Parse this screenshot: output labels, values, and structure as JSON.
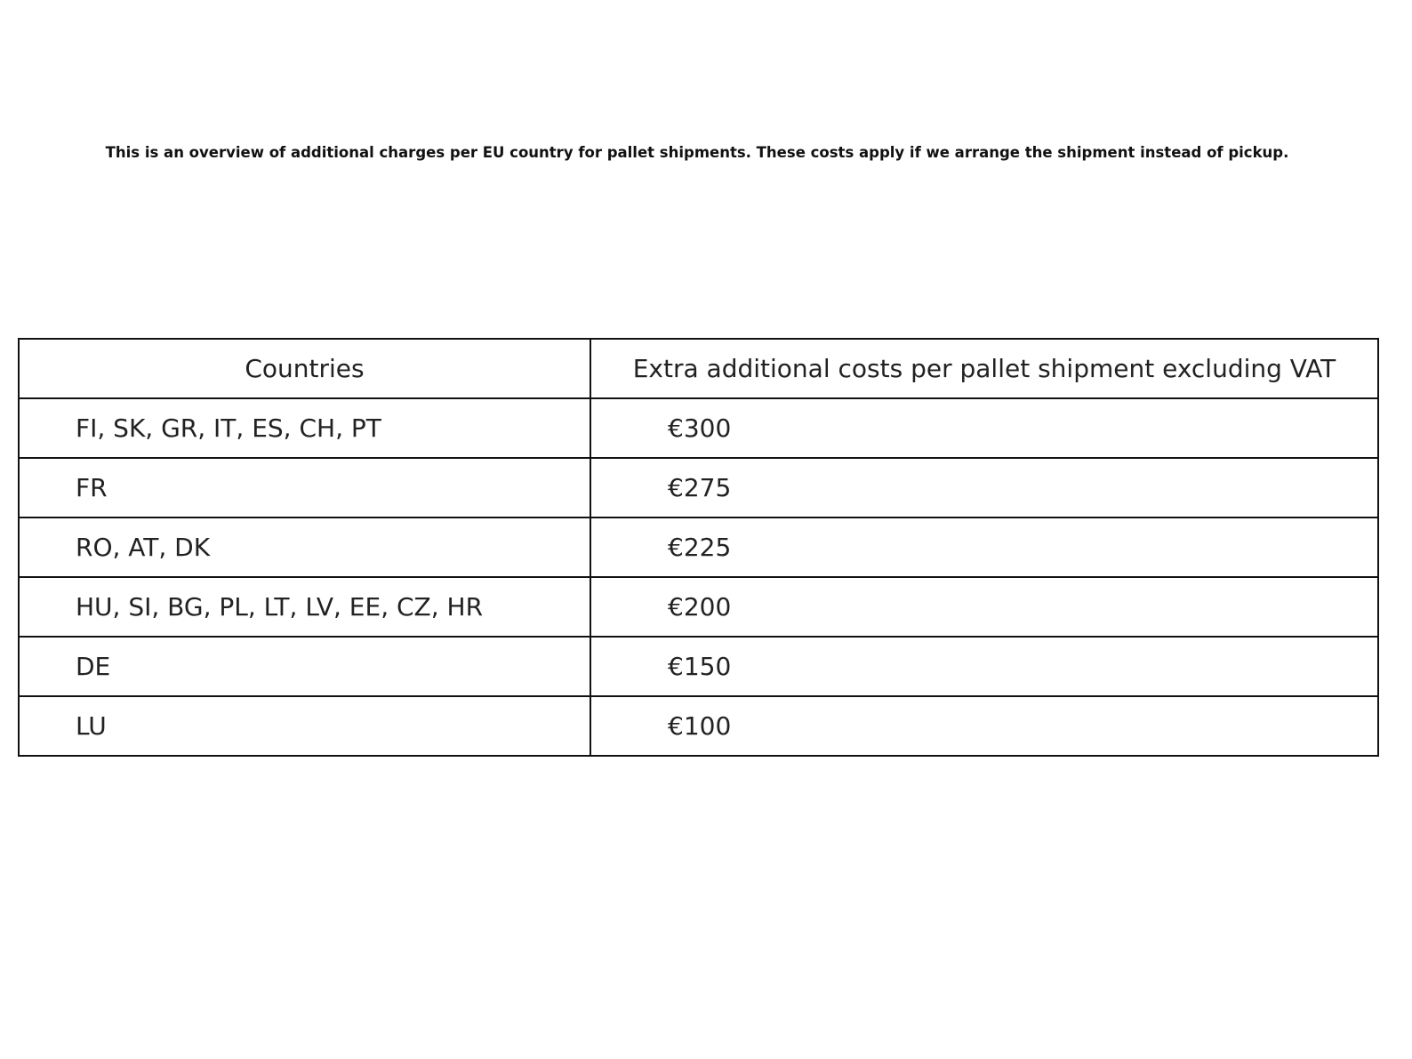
{
  "chart_data": {
    "type": "table",
    "title": "This is an overview of additional charges per EU country for pallet shipments. These costs apply if we arrange the shipment instead of pickup.",
    "columns": [
      "Countries",
      "Extra additional costs per pallet shipment excluding VAT"
    ],
    "rows": [
      [
        "FI, SK, GR, IT, ES, CH, PT",
        "€300"
      ],
      [
        "FR",
        "€275"
      ],
      [
        "RO, AT, DK",
        "€225"
      ],
      [
        "HU, SI, BG, PL, LT, LV, EE, CZ, HR",
        "€200"
      ],
      [
        "DE",
        "€150"
      ],
      [
        "LU",
        "€100"
      ]
    ]
  }
}
